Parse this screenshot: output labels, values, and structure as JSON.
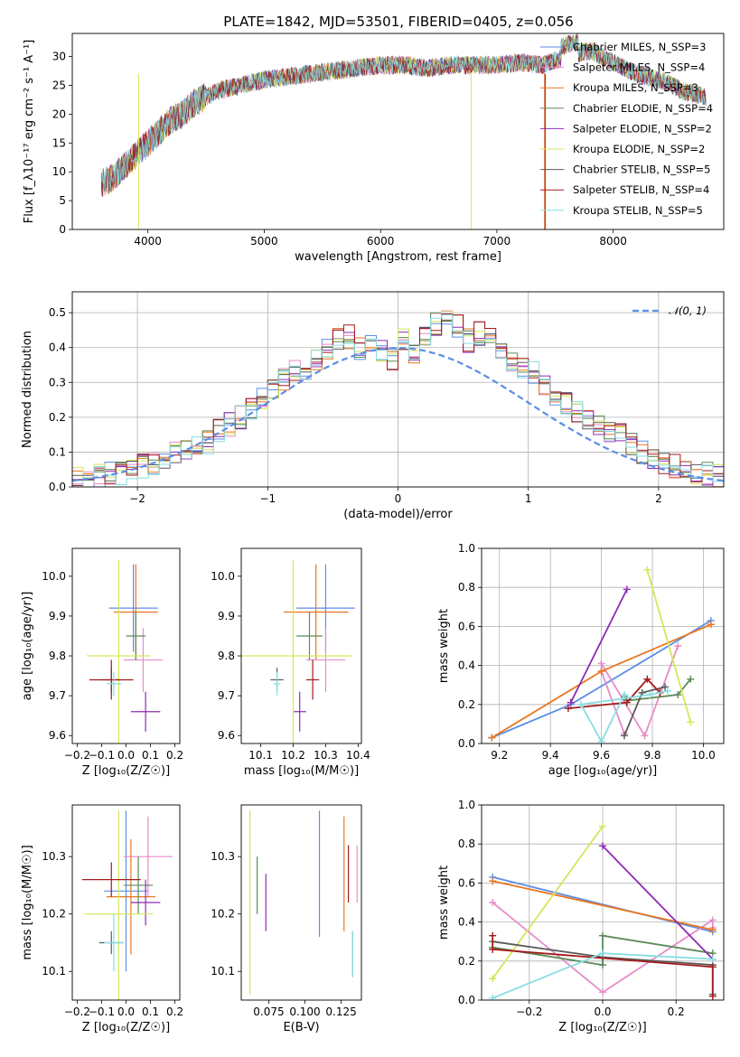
{
  "figure": {
    "title": "PLATE=1842, MJD=53501, FIBERID=0405, z=0.056"
  },
  "model_colors": [
    "#5b8ee6",
    "#e88cc7",
    "#e9761f",
    "#5d8a5a",
    "#8e2bb3",
    "#d6e65a",
    "#5a5a5a",
    "#a31b1b",
    "#86dde3"
  ],
  "chart_data": [
    {
      "id": "spectrum",
      "type": "line",
      "xlabel": "wavelength [Angstrom, rest frame]",
      "ylabel": "Flux [f_λ10⁻¹⁷ erg cm⁻² s⁻¹ A⁻¹]",
      "xlim": [
        3350,
        8950
      ],
      "ylim": [
        0,
        34
      ],
      "xticks": [
        4000,
        5000,
        6000,
        7000,
        8000
      ],
      "yticks": [
        0,
        5,
        10,
        15,
        20,
        25,
        30
      ],
      "legend_position": "upper-right",
      "continuum": {
        "x": [
          3600,
          3700,
          3800,
          3900,
          4000,
          4100,
          4200,
          4300,
          4400,
          4500,
          4600,
          4800,
          5000,
          5200,
          5400,
          5600,
          5800,
          6000,
          6200,
          6400,
          6600,
          6800,
          7000,
          7200,
          7400,
          7600,
          7800,
          8000,
          8200,
          8400,
          8600,
          8800
        ],
        "y": [
          8,
          9,
          11,
          13,
          15,
          17,
          19,
          20,
          22,
          23,
          24,
          25,
          26,
          26.5,
          27,
          27.5,
          28,
          28.5,
          28.5,
          28,
          28.5,
          28.5,
          28.5,
          29,
          28.5,
          30,
          31,
          29,
          27,
          26,
          24,
          23
        ]
      },
      "series": [
        {
          "name": "Chabrier MILES, N_SSP=3",
          "color": "#5b8ee6"
        },
        {
          "name": "Salpeter MILES, N_SSP=4",
          "color": "#e88cc7"
        },
        {
          "name": "Kroupa MILES, N_SSP=3",
          "color": "#e9761f"
        },
        {
          "name": "Chabrier ELODIE, N_SSP=4",
          "color": "#5d8a5a"
        },
        {
          "name": "Salpeter ELODIE, N_SSP=2",
          "color": "#8e2bb3"
        },
        {
          "name": "Kroupa ELODIE, N_SSP=2",
          "color": "#d6e65a"
        },
        {
          "name": "Chabrier STELIB, N_SSP=5",
          "color": "#5a5a5a"
        },
        {
          "name": "Salpeter STELIB, N_SSP=4",
          "color": "#a31b1b"
        },
        {
          "name": "Kroupa STELIB, N_SSP=5",
          "color": "#86dde3"
        }
      ]
    },
    {
      "id": "residuals",
      "type": "line",
      "xlabel": "(data-model)/error",
      "ylabel": "Normed distribution",
      "xlim": [
        -2.5,
        2.5
      ],
      "ylim": [
        0,
        0.56
      ],
      "xticks": [
        -2,
        -1,
        0,
        1,
        2
      ],
      "yticks": [
        0.0,
        0.1,
        0.2,
        0.3,
        0.4,
        0.5
      ],
      "bin_width": 0.1,
      "base_histogram": [
        0.03,
        0.02,
        0.03,
        0.04,
        0.04,
        0.05,
        0.06,
        0.07,
        0.08,
        0.1,
        0.11,
        0.12,
        0.13,
        0.16,
        0.18,
        0.2,
        0.22,
        0.25,
        0.28,
        0.31,
        0.33,
        0.34,
        0.36,
        0.39,
        0.42,
        0.43,
        0.4,
        0.4,
        0.39,
        0.37,
        0.42,
        0.38,
        0.44,
        0.47,
        0.48,
        0.46,
        0.42,
        0.44,
        0.42,
        0.4,
        0.36,
        0.34,
        0.33,
        0.29,
        0.27,
        0.24,
        0.22,
        0.2,
        0.17,
        0.16,
        0.15,
        0.12,
        0.1,
        0.08,
        0.07,
        0.06,
        0.05,
        0.04,
        0.04,
        0.03
      ],
      "normal_curve": {
        "name": "𝒩(0, 1)",
        "color": "#5b8ee6",
        "style": "dashed"
      }
    },
    {
      "id": "age-vs-z",
      "type": "scatter",
      "xlabel": "Z [log₁₀(Z/Z☉)]",
      "ylabel": "age  [log₁₀(age/yr)]",
      "xlim": [
        -0.22,
        0.22
      ],
      "ylim": [
        9.58,
        10.07
      ],
      "xticks": [
        -0.2,
        -0.1,
        0.0,
        0.1,
        0.2
      ],
      "yticks": [
        9.6,
        9.7,
        9.8,
        9.9,
        10.0
      ],
      "points": [
        {
          "x": 0.03,
          "y": 9.92,
          "xerr": 0.1,
          "yerr": 0.11,
          "color": "#5b8ee6"
        },
        {
          "x": 0.07,
          "y": 9.79,
          "xerr": 0.08,
          "yerr": 0.08,
          "color": "#e88cc7"
        },
        {
          "x": 0.04,
          "y": 9.91,
          "xerr": 0.09,
          "yerr": 0.12,
          "color": "#e9761f"
        },
        {
          "x": 0.04,
          "y": 9.85,
          "xerr": 0.04,
          "yerr": 0.06,
          "color": "#5d8a5a"
        },
        {
          "x": 0.08,
          "y": 9.66,
          "xerr": 0.06,
          "yerr": 0.05,
          "color": "#8e2bb3"
        },
        {
          "x": -0.03,
          "y": 9.8,
          "xerr": 0.13,
          "yerr": 0.24,
          "color": "#d6e65a"
        },
        {
          "x": -0.06,
          "y": 9.74,
          "xerr": 0.04,
          "yerr": 0.03,
          "color": "#5a5a5a"
        },
        {
          "x": -0.06,
          "y": 9.74,
          "xerr": 0.09,
          "yerr": 0.05,
          "color": "#a31b1b"
        },
        {
          "x": -0.05,
          "y": 9.73,
          "xerr": 0.03,
          "yerr": 0.03,
          "color": "#86dde3"
        }
      ]
    },
    {
      "id": "age-vs-mass",
      "type": "scatter",
      "xlabel": "mass [log₁₀(M/M☉)]",
      "ylabel": "",
      "xlim": [
        10.04,
        10.41
      ],
      "ylim": [
        9.58,
        10.07
      ],
      "xticks": [
        10.1,
        10.2,
        10.3,
        10.4
      ],
      "yticks": [
        9.6,
        9.7,
        9.8,
        9.9,
        10.0
      ],
      "points": [
        {
          "x": 10.3,
          "y": 9.92,
          "xerr": 0.09,
          "yerr": 0.11,
          "color": "#5b8ee6"
        },
        {
          "x": 10.3,
          "y": 9.79,
          "xerr": 0.06,
          "yerr": 0.08,
          "color": "#e88cc7"
        },
        {
          "x": 10.27,
          "y": 9.91,
          "xerr": 0.1,
          "yerr": 0.12,
          "color": "#e9761f"
        },
        {
          "x": 10.25,
          "y": 9.85,
          "xerr": 0.04,
          "yerr": 0.06,
          "color": "#5d8a5a"
        },
        {
          "x": 10.22,
          "y": 9.66,
          "xerr": 0.02,
          "yerr": 0.05,
          "color": "#8e2bb3"
        },
        {
          "x": 10.2,
          "y": 9.8,
          "xerr": 0.18,
          "yerr": 0.24,
          "color": "#d6e65a"
        },
        {
          "x": 10.15,
          "y": 9.74,
          "xerr": 0.02,
          "yerr": 0.03,
          "color": "#5a5a5a"
        },
        {
          "x": 10.26,
          "y": 9.74,
          "xerr": 0.02,
          "yerr": 0.05,
          "color": "#a31b1b"
        },
        {
          "x": 10.15,
          "y": 9.73,
          "xerr": 0.01,
          "yerr": 0.03,
          "color": "#86dde3"
        }
      ]
    },
    {
      "id": "weight-vs-age",
      "type": "line",
      "xlabel": "age  [log₁₀(age/yr)]",
      "ylabel": "mass weight",
      "xlim": [
        9.13,
        10.08
      ],
      "ylim": [
        0,
        1
      ],
      "xticks": [
        9.2,
        9.4,
        9.6,
        9.8,
        10.0
      ],
      "yticks": [
        0.0,
        0.2,
        0.4,
        0.6,
        0.8,
        1.0
      ],
      "series": [
        {
          "color": "#5b8ee6",
          "x": [
            10.03,
            9.48,
            9.17
          ],
          "y": [
            0.63,
            0.2,
            0.03
          ]
        },
        {
          "color": "#e88cc7",
          "x": [
            9.9,
            9.77,
            9.6,
            9.6,
            9.69
          ],
          "y": [
            0.5,
            0.04,
            0.41,
            0.37,
            0.05
          ]
        },
        {
          "color": "#e9761f",
          "x": [
            10.03,
            9.6,
            9.17
          ],
          "y": [
            0.61,
            0.37,
            0.03
          ]
        },
        {
          "color": "#5d8a5a",
          "x": [
            9.95,
            9.9,
            9.7,
            9.69
          ],
          "y": [
            0.33,
            0.25,
            0.22,
            0.24
          ]
        },
        {
          "color": "#8e2bb3",
          "x": [
            9.7,
            9.48
          ],
          "y": [
            0.79,
            0.21
          ]
        },
        {
          "color": "#d6e65a",
          "x": [
            9.78,
            9.95
          ],
          "y": [
            0.89,
            0.11
          ]
        },
        {
          "color": "#5a5a5a",
          "x": [
            9.69,
            9.76,
            9.85
          ],
          "y": [
            0.04,
            0.26,
            0.29
          ]
        },
        {
          "color": "#a31b1b",
          "x": [
            9.47,
            9.7,
            9.78,
            9.83
          ],
          "y": [
            0.18,
            0.21,
            0.33,
            0.26
          ]
        },
        {
          "color": "#86dde3",
          "x": [
            9.69,
            9.6,
            9.52,
            9.79,
            9.86
          ],
          "y": [
            0.25,
            0.01,
            0.2,
            0.25,
            0.27
          ]
        }
      ]
    },
    {
      "id": "mass-vs-z",
      "type": "scatter",
      "xlabel": "Z [log₁₀(Z/Z☉)]",
      "ylabel": "mass [log₁₀(M/M☉)]",
      "xlim": [
        -0.22,
        0.22
      ],
      "ylim": [
        10.05,
        10.39
      ],
      "xticks": [
        -0.2,
        -0.1,
        0.0,
        0.1,
        0.2
      ],
      "yticks": [
        10.1,
        10.2,
        10.3
      ],
      "points": [
        {
          "x": 0.0,
          "y": 10.24,
          "xerr": 0.09,
          "yerr": 0.14,
          "color": "#5b8ee6"
        },
        {
          "x": 0.09,
          "y": 10.3,
          "xerr": 0.1,
          "yerr": 0.07,
          "color": "#e88cc7"
        },
        {
          "x": 0.02,
          "y": 10.23,
          "xerr": 0.1,
          "yerr": 0.1,
          "color": "#e9761f"
        },
        {
          "x": 0.05,
          "y": 10.25,
          "xerr": 0.06,
          "yerr": 0.05,
          "color": "#5d8a5a"
        },
        {
          "x": 0.08,
          "y": 10.22,
          "xerr": 0.06,
          "yerr": 0.04,
          "color": "#8e2bb3"
        },
        {
          "x": -0.03,
          "y": 10.2,
          "xerr": 0.14,
          "yerr": 0.18,
          "color": "#d6e65a"
        },
        {
          "x": -0.06,
          "y": 10.15,
          "xerr": 0.05,
          "yerr": 0.02,
          "color": "#5a5a5a"
        },
        {
          "x": -0.06,
          "y": 10.26,
          "xerr": 0.12,
          "yerr": 0.03,
          "color": "#a31b1b"
        },
        {
          "x": -0.05,
          "y": 10.15,
          "xerr": 0.04,
          "yerr": 0.05,
          "color": "#86dde3"
        }
      ]
    },
    {
      "id": "mass-vs-ebv",
      "type": "scatter",
      "xlabel": "E(B-V)",
      "ylabel": "",
      "xlim": [
        0.056,
        0.139
      ],
      "ylim": [
        10.05,
        10.39
      ],
      "xticks": [
        0.075,
        0.1,
        0.125
      ],
      "yticks": [
        10.1,
        10.2,
        10.3
      ],
      "points": [
        {
          "x": 0.11,
          "y": 10.27,
          "xerr": 0.0,
          "yerr": 0.11,
          "color": "#5b8ee6"
        },
        {
          "x": 0.136,
          "y": 10.27,
          "xerr": 0.0,
          "yerr": 0.05,
          "color": "#e88cc7"
        },
        {
          "x": 0.127,
          "y": 10.27,
          "xerr": 0.0,
          "yerr": 0.1,
          "color": "#e9761f"
        },
        {
          "x": 0.067,
          "y": 10.25,
          "xerr": 0.0,
          "yerr": 0.05,
          "color": "#5d8a5a"
        },
        {
          "x": 0.073,
          "y": 10.22,
          "xerr": 0.0,
          "yerr": 0.05,
          "color": "#8e2bb3"
        },
        {
          "x": 0.062,
          "y": 10.22,
          "xerr": 0.0,
          "yerr": 0.16,
          "color": "#d6e65a"
        },
        {
          "x": 0.133,
          "y": 10.13,
          "xerr": 0.0,
          "yerr": 0.04,
          "color": "#5a5a5a"
        },
        {
          "x": 0.13,
          "y": 10.27,
          "xerr": 0.0,
          "yerr": 0.05,
          "color": "#a31b1b"
        },
        {
          "x": 0.133,
          "y": 10.13,
          "xerr": 0.0,
          "yerr": 0.04,
          "color": "#86dde3"
        }
      ]
    },
    {
      "id": "weight-vs-z",
      "type": "line",
      "xlabel": "Z [log₁₀(Z/Z☉)]",
      "ylabel": "mass weight",
      "xlim": [
        -0.33,
        0.33
      ],
      "ylim": [
        0,
        1
      ],
      "xticks": [
        -0.2,
        0.0,
        0.2
      ],
      "yticks": [
        0.0,
        0.2,
        0.4,
        0.6,
        0.8,
        1.0
      ],
      "series": [
        {
          "color": "#5b8ee6",
          "x": [
            -0.3,
            0.3
          ],
          "y": [
            0.63,
            0.35
          ]
        },
        {
          "color": "#e88cc7",
          "x": [
            -0.3,
            0.0,
            0.3,
            0.3
          ],
          "y": [
            0.5,
            0.04,
            0.41,
            0.37
          ]
        },
        {
          "color": "#e9761f",
          "x": [
            -0.3,
            0.3
          ],
          "y": [
            0.61,
            0.36
          ]
        },
        {
          "color": "#5d8a5a",
          "x": [
            -0.3,
            0.0,
            0.0,
            0.3
          ],
          "y": [
            0.27,
            0.18,
            0.33,
            0.24
          ]
        },
        {
          "color": "#8e2bb3",
          "x": [
            0.0,
            0.3
          ],
          "y": [
            0.79,
            0.21
          ]
        },
        {
          "color": "#d6e65a",
          "x": [
            -0.3,
            0.0
          ],
          "y": [
            0.11,
            0.89
          ]
        },
        {
          "color": "#5a5a5a",
          "x": [
            -0.3,
            0.0,
            0.3,
            0.3
          ],
          "y": [
            0.3,
            0.22,
            0.18,
            0.03
          ]
        },
        {
          "color": "#a31b1b",
          "x": [
            -0.3,
            -0.3,
            0.3,
            0.3
          ],
          "y": [
            0.33,
            0.26,
            0.17,
            0.02
          ]
        },
        {
          "color": "#86dde3",
          "x": [
            -0.3,
            0.0,
            0.3
          ],
          "y": [
            0.01,
            0.24,
            0.21
          ]
        }
      ]
    }
  ]
}
